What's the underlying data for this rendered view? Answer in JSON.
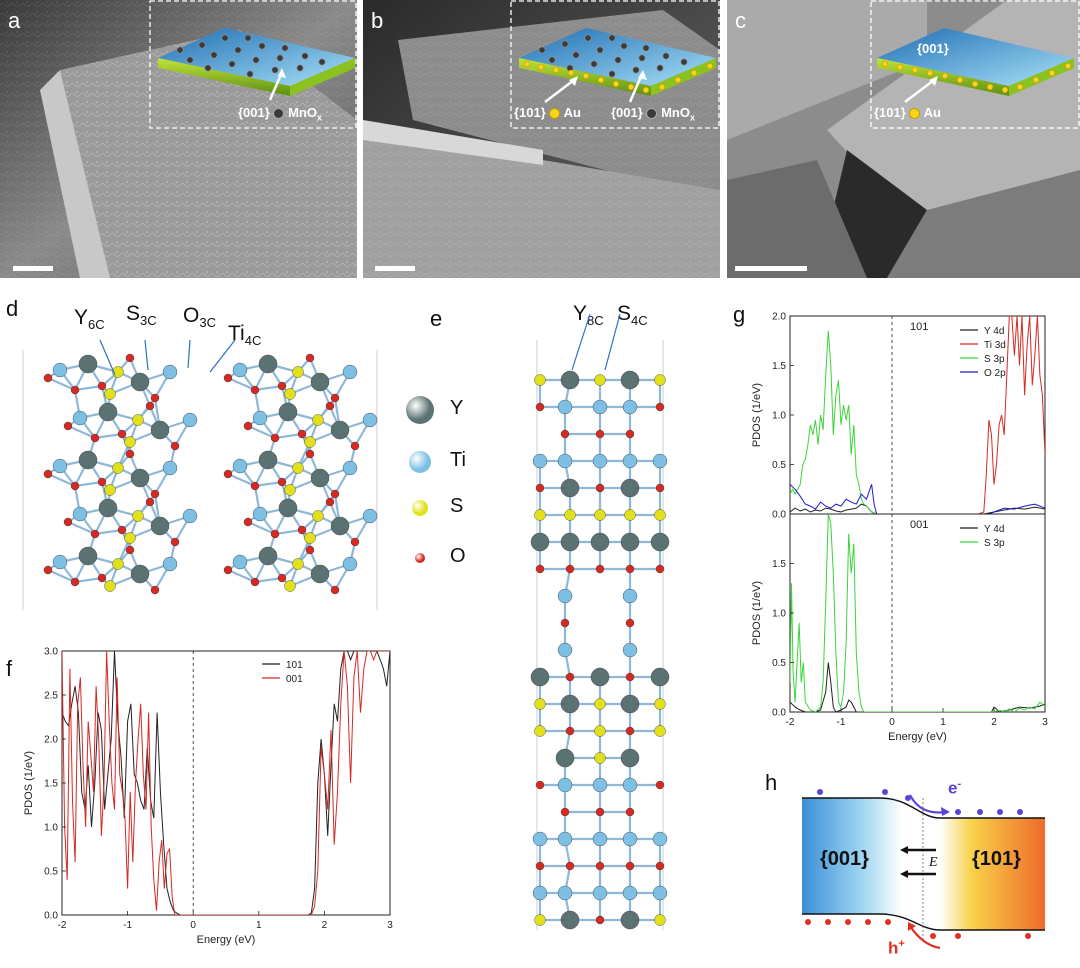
{
  "panels": {
    "a": {
      "label": "a",
      "facet_label": "{001}",
      "dot_label": "MnO"
    },
    "b": {
      "label": "b",
      "facet_label_1": "{101}",
      "dot_label_1": "Au",
      "facet_label_2": "{001}",
      "dot_label_2": "MnO"
    },
    "c": {
      "label": "c",
      "top_label": "{001}",
      "facet_label": "{101}",
      "dot_label": "Au"
    },
    "d": {
      "label": "d",
      "atoms": [
        {
          "main": "Y",
          "sub": "6C"
        },
        {
          "main": "S",
          "sub": "3C"
        },
        {
          "main": "O",
          "sub": "3C"
        },
        {
          "main": "Ti",
          "sub": "4C"
        }
      ]
    },
    "e": {
      "label": "e",
      "atoms": [
        {
          "main": "Y",
          "sub": "8C"
        },
        {
          "main": "S",
          "sub": "4C"
        }
      ]
    },
    "legend": [
      {
        "symbol": "Y",
        "color": "#5a7272"
      },
      {
        "symbol": "Ti",
        "color": "#7ec0e4"
      },
      {
        "symbol": "S",
        "color": "#e1e01a"
      },
      {
        "symbol": "O",
        "color": "#d42a22"
      }
    ],
    "f": {
      "label": "f"
    },
    "g": {
      "label": "g"
    },
    "h": {
      "label": "h",
      "left_label": "{001}",
      "right_label": "{101}",
      "field_label": "E",
      "electron_label": "e",
      "electron_sup": "-",
      "hole_label": "h",
      "hole_sup": "+"
    },
    "subscript_x": "x"
  },
  "chart_data": [
    {
      "id": "f",
      "type": "line",
      "xlabel": "Energy (eV)",
      "ylabel": "PDOS (1/eV)",
      "xlim": [
        -2,
        3
      ],
      "ylim": [
        0,
        3.0
      ],
      "xticks": [
        "-2",
        "-1",
        "0",
        "1",
        "2",
        "3"
      ],
      "yticks": [
        "0.0",
        "0.5",
        "1.0",
        "1.5",
        "2.0",
        "2.5",
        "3.0"
      ],
      "legend_position": "top-right",
      "series": [
        {
          "name": "101",
          "color": "#222222",
          "x": [
            -2.0,
            -1.95,
            -1.9,
            -1.85,
            -1.8,
            -1.75,
            -1.7,
            -1.65,
            -1.6,
            -1.55,
            -1.5,
            -1.45,
            -1.4,
            -1.35,
            -1.3,
            -1.25,
            -1.2,
            -1.15,
            -1.1,
            -1.05,
            -1.0,
            -0.95,
            -0.9,
            -0.85,
            -0.8,
            -0.75,
            -0.7,
            -0.65,
            -0.6,
            -0.55,
            -0.5,
            -0.45,
            -0.4,
            -0.35,
            -0.3,
            -0.25,
            -0.2,
            1.7,
            1.75,
            1.8,
            1.85,
            1.9,
            1.95,
            2.0,
            2.05,
            2.1,
            2.15,
            2.2,
            2.25,
            2.3,
            2.35,
            2.4,
            2.45,
            2.5,
            2.55,
            2.6,
            2.65,
            2.7,
            2.75,
            2.8,
            2.85,
            2.9,
            2.95,
            3.0
          ],
          "y": [
            2.3,
            2.2,
            2.15,
            2.4,
            2.6,
            2.3,
            1.4,
            1.2,
            1.7,
            1.0,
            1.5,
            2.3,
            2.1,
            1.2,
            1.6,
            2.0,
            3.0,
            2.2,
            1.8,
            1.1,
            2.2,
            2.4,
            1.6,
            1.5,
            1.3,
            1.2,
            1.9,
            1.3,
            1.1,
            2.3,
            1.4,
            0.8,
            0.3,
            0.15,
            0.05,
            0.02,
            0.0,
            0.0,
            0.0,
            0.02,
            0.3,
            1.5,
            2.0,
            1.6,
            0.9,
            1.7,
            2.4,
            2.2,
            2.8,
            3.0,
            3.0,
            2.9,
            3.0,
            3.0,
            3.0,
            3.0,
            3.0,
            3.0,
            3.0,
            3.0,
            2.9,
            2.8,
            2.6,
            3.0
          ]
        },
        {
          "name": "001",
          "color": "#d42a22",
          "x": [
            -2.0,
            -1.96,
            -1.92,
            -1.88,
            -1.84,
            -1.8,
            -1.76,
            -1.72,
            -1.68,
            -1.64,
            -1.6,
            -1.56,
            -1.52,
            -1.48,
            -1.44,
            -1.4,
            -1.36,
            -1.32,
            -1.28,
            -1.24,
            -1.2,
            -1.16,
            -1.12,
            -1.08,
            -1.04,
            -1.0,
            -0.96,
            -0.92,
            -0.88,
            -0.84,
            -0.8,
            -0.76,
            -0.72,
            -0.68,
            -0.64,
            -0.6,
            -0.56,
            -0.52,
            -0.48,
            -0.44,
            -0.4,
            -0.36,
            -0.32,
            -0.28,
            -0.24,
            1.75,
            1.8,
            1.85,
            1.9,
            1.95,
            2.0,
            2.05,
            2.1,
            2.15,
            2.2,
            2.25,
            2.3,
            2.35,
            2.4,
            2.45,
            2.5,
            2.55,
            2.6,
            2.65,
            2.7,
            2.75,
            2.8,
            2.85,
            2.9,
            2.95,
            3.0
          ],
          "y": [
            3.0,
            1.0,
            0.4,
            2.8,
            1.3,
            0.6,
            2.4,
            2.7,
            1.7,
            1.0,
            2.2,
            1.8,
            1.4,
            2.6,
            2.0,
            0.9,
            1.5,
            3.0,
            2.2,
            1.5,
            1.2,
            2.7,
            1.6,
            1.4,
            1.1,
            0.3,
            1.4,
            0.6,
            1.5,
            2.0,
            2.4,
            1.6,
            1.2,
            2.3,
            1.0,
            0.4,
            0.05,
            0.6,
            0.85,
            0.3,
            0.7,
            0.75,
            0.2,
            0.0,
            0.0,
            0.0,
            0.0,
            0.1,
            0.5,
            1.9,
            1.6,
            1.2,
            2.1,
            0.8,
            1.4,
            2.4,
            3.0,
            2.6,
            1.5,
            2.7,
            3.0,
            2.3,
            2.8,
            3.0,
            3.0,
            2.9,
            3.0,
            3.0,
            3.0,
            3.0,
            3.0
          ]
        }
      ]
    },
    {
      "id": "g-top",
      "type": "line",
      "annotation": "101",
      "ylabel": "PDOS (1/eV)",
      "xlim": [
        -2,
        3
      ],
      "ylim": [
        0,
        2.0
      ],
      "yticks": [
        "0.0",
        "0.5",
        "1.0",
        "1.5",
        "2.0"
      ],
      "legend_position": "top-right",
      "series": [
        {
          "name": "Y 4d",
          "color": "#222222",
          "x": [
            -2.0,
            -1.9,
            -1.8,
            -1.7,
            -1.6,
            -1.5,
            -1.4,
            -1.3,
            -1.2,
            -1.1,
            -1.0,
            -0.9,
            -0.8,
            -0.7,
            -0.6,
            -0.5,
            -0.4,
            -0.3,
            1.8,
            2.0,
            2.2,
            2.4,
            2.6,
            2.8,
            3.0
          ],
          "y": [
            0.02,
            0.06,
            0.03,
            0.05,
            0.02,
            0.04,
            0.03,
            0.06,
            0.05,
            0.03,
            0.02,
            0.04,
            0.05,
            0.06,
            0.1,
            0.08,
            0.02,
            0.0,
            0.0,
            0.02,
            0.04,
            0.06,
            0.05,
            0.07,
            0.05
          ]
        },
        {
          "name": "Ti 3d",
          "color": "#d42a22",
          "x": [
            -2.0,
            -1.5,
            -1.0,
            -0.5,
            0.0,
            1.7,
            1.8,
            1.85,
            1.9,
            1.95,
            2.0,
            2.05,
            2.1,
            2.15,
            2.2,
            2.25,
            2.3,
            2.35,
            2.4,
            2.45,
            2.5,
            2.55,
            2.6,
            2.65,
            2.7,
            2.75,
            2.8,
            2.85,
            2.9,
            2.95,
            3.0
          ],
          "y": [
            0.0,
            0.0,
            0.0,
            0.0,
            0.0,
            0.0,
            0.02,
            0.4,
            0.95,
            0.8,
            0.3,
            0.5,
            0.9,
            1.0,
            0.8,
            1.4,
            2.0,
            2.0,
            1.6,
            2.0,
            1.5,
            2.0,
            1.2,
            1.7,
            2.0,
            1.3,
            1.6,
            2.0,
            1.4,
            1.2,
            0.6
          ]
        },
        {
          "name": "S 3p",
          "color": "#3ad43a",
          "x": [
            -2.0,
            -1.95,
            -1.9,
            -1.85,
            -1.8,
            -1.75,
            -1.7,
            -1.65,
            -1.6,
            -1.55,
            -1.5,
            -1.45,
            -1.4,
            -1.35,
            -1.3,
            -1.25,
            -1.2,
            -1.15,
            -1.1,
            -1.05,
            -1.0,
            -0.95,
            -0.9,
            -0.85,
            -0.8,
            -0.75,
            -0.7,
            -0.65,
            -0.6,
            -0.55,
            -0.5,
            -0.45,
            -0.4,
            -0.35,
            -0.3
          ],
          "y": [
            0.2,
            0.25,
            0.2,
            0.25,
            0.3,
            0.5,
            0.55,
            0.7,
            0.9,
            0.8,
            0.95,
            0.7,
            1.0,
            0.85,
            1.4,
            1.85,
            1.5,
            0.8,
            1.2,
            1.35,
            0.9,
            1.1,
            0.95,
            1.1,
            0.6,
            0.9,
            0.4,
            0.3,
            0.15,
            0.1,
            0.08,
            0.05,
            0.02,
            0.01,
            0.0
          ]
        },
        {
          "name": "O 2p",
          "color": "#1a1ad4",
          "x": [
            -2.0,
            -1.9,
            -1.8,
            -1.7,
            -1.6,
            -1.5,
            -1.4,
            -1.3,
            -1.2,
            -1.1,
            -1.0,
            -0.9,
            -0.8,
            -0.7,
            -0.6,
            -0.5,
            -0.4,
            -0.35,
            -0.3,
            1.9,
            2.0,
            2.2,
            2.4,
            2.6,
            2.8,
            3.0
          ],
          "y": [
            0.3,
            0.25,
            0.18,
            0.1,
            0.08,
            0.05,
            0.12,
            0.08,
            0.06,
            0.1,
            0.08,
            0.15,
            0.12,
            0.1,
            0.2,
            0.15,
            0.3,
            0.1,
            0.0,
            0.0,
            0.02,
            0.06,
            0.05,
            0.08,
            0.1,
            0.06
          ]
        }
      ]
    },
    {
      "id": "g-bottom",
      "type": "line",
      "annotation": "001",
      "xlabel": "Energy (eV)",
      "ylabel": "PDOS (1/eV)",
      "xlim": [
        -2,
        3
      ],
      "ylim": [
        0,
        2.0
      ],
      "xticks": [
        "-2",
        "-1",
        "0",
        "1",
        "2",
        "3"
      ],
      "yticks": [
        "0.0",
        "0.5",
        "1.0",
        "1.5"
      ],
      "legend_position": "top-right",
      "series": [
        {
          "name": "Y 4d",
          "color": "#222222",
          "x": [
            -2.0,
            -1.9,
            -1.8,
            -1.7,
            -1.6,
            -1.5,
            -1.4,
            -1.3,
            -1.25,
            -1.2,
            -1.15,
            -1.1,
            -1.0,
            -0.9,
            -0.85,
            -0.8,
            -0.75,
            -0.7,
            -0.6,
            1.95,
            2.0,
            2.05,
            2.1,
            2.3,
            2.5,
            2.7,
            2.9,
            3.0
          ],
          "y": [
            0.1,
            0.05,
            0.02,
            0.0,
            0.0,
            0.0,
            0.02,
            0.2,
            0.5,
            0.3,
            0.05,
            0.0,
            0.02,
            0.05,
            0.12,
            0.1,
            0.05,
            0.0,
            0.0,
            0.0,
            0.05,
            0.03,
            0.0,
            0.02,
            0.05,
            0.04,
            0.06,
            0.08
          ]
        },
        {
          "name": "S 3p",
          "color": "#3ad43a",
          "x": [
            -2.0,
            -1.97,
            -1.94,
            -1.9,
            -1.86,
            -1.82,
            -1.78,
            -1.74,
            -1.7,
            -1.6,
            -1.5,
            -1.4,
            -1.35,
            -1.3,
            -1.25,
            -1.2,
            -1.15,
            -1.1,
            -1.05,
            -1.0,
            -0.95,
            -0.9,
            -0.85,
            -0.8,
            -0.75,
            -0.7,
            -0.65,
            -0.6,
            -0.55,
            -0.5,
            2.0,
            2.1,
            2.2,
            2.3,
            2.4,
            2.5,
            2.6,
            2.7,
            2.8,
            2.9,
            3.0
          ],
          "y": [
            0.3,
            1.3,
            0.4,
            0.1,
            0.5,
            0.9,
            0.3,
            0.5,
            0.1,
            0.02,
            0.0,
            0.05,
            0.3,
            1.1,
            2.0,
            1.9,
            1.4,
            0.6,
            0.1,
            0.05,
            0.2,
            0.7,
            1.8,
            1.4,
            1.7,
            0.6,
            0.2,
            0.05,
            0.0,
            0.0,
            0.0,
            0.02,
            0.0,
            0.03,
            0.0,
            0.04,
            0.02,
            0.05,
            0.03,
            0.1,
            0.06
          ]
        }
      ]
    }
  ]
}
